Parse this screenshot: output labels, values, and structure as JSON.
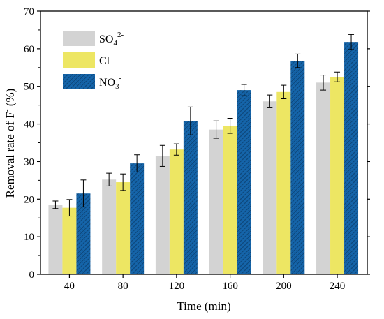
{
  "chart_data": {
    "type": "bar",
    "title": "",
    "xlabel": "Time (min)",
    "ylabel": {
      "main": "Removal rate of F",
      "sup": "-",
      "tail": " (%)"
    },
    "categories": [
      "40",
      "80",
      "120",
      "160",
      "200",
      "240"
    ],
    "ylim": [
      0,
      70
    ],
    "yticks": [
      "0",
      "10",
      "20",
      "30",
      "40",
      "50",
      "60",
      "70"
    ],
    "grid": false,
    "legend": "top-left",
    "series": [
      {
        "name": {
          "base": "SO",
          "sub": "4",
          "sup": "2-"
        },
        "color": "#d3d3d3",
        "pattern": "none",
        "values": [
          18.5,
          25.2,
          31.5,
          38.5,
          46.0,
          51.0
        ],
        "errors": [
          1.0,
          1.7,
          2.8,
          2.3,
          1.7,
          2.0
        ]
      },
      {
        "name": {
          "base": "Cl",
          "sub": "",
          "sup": "-"
        },
        "color": "#ede663",
        "pattern": "none",
        "values": [
          17.7,
          24.5,
          33.2,
          39.5,
          48.5,
          52.5
        ],
        "errors": [
          2.2,
          2.2,
          1.5,
          2.0,
          1.8,
          1.3
        ]
      },
      {
        "name": {
          "base": "NO",
          "sub": "3",
          "sup": "-"
        },
        "color": "#1565aa",
        "pattern": "hatch",
        "values": [
          21.5,
          29.5,
          40.8,
          49.0,
          56.8,
          61.8
        ],
        "errors": [
          3.6,
          2.3,
          3.7,
          1.5,
          1.8,
          2.0
        ]
      }
    ]
  }
}
